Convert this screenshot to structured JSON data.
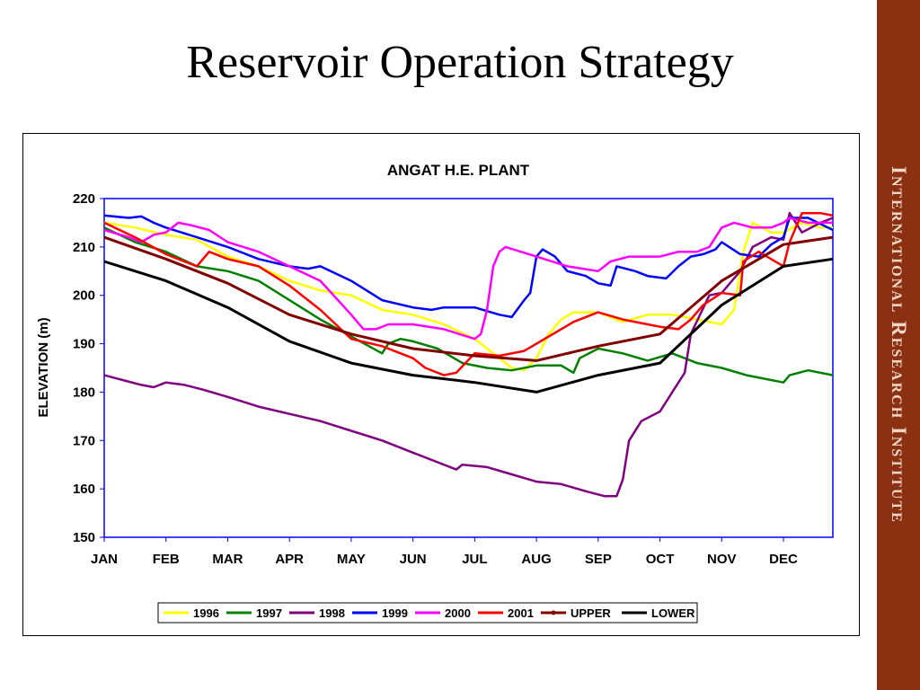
{
  "slide": {
    "title": "Reservoir Operation Strategy",
    "banner_text": "International Research Institute",
    "banner_color": "#8b3010"
  },
  "chart_data": {
    "type": "line",
    "title": "ANGAT H.E. PLANT",
    "xlabel": "",
    "ylabel": "ELEVATION (m)",
    "x_ticks": [
      "JAN",
      "FEB",
      "MAR",
      "APR",
      "MAY",
      "JUN",
      "JUL",
      "AUG",
      "SEP",
      "OCT",
      "NOV",
      "DEC"
    ],
    "y_ticks": [
      150,
      160,
      170,
      180,
      190,
      200,
      210,
      220
    ],
    "ylim": [
      150,
      220
    ],
    "xlim": [
      0,
      11.8
    ],
    "grid": false,
    "legend_position": "bottom",
    "series": [
      {
        "name": "1996",
        "color": "#ffff00",
        "points": [
          [
            0,
            215
          ],
          [
            0.5,
            214
          ],
          [
            1,
            212.5
          ],
          [
            1.5,
            211.5
          ],
          [
            2,
            208
          ],
          [
            2.5,
            206
          ],
          [
            3,
            203
          ],
          [
            3.5,
            201
          ],
          [
            4,
            200
          ],
          [
            4.5,
            197
          ],
          [
            5,
            196
          ],
          [
            5.5,
            194
          ],
          [
            6,
            191
          ],
          [
            6.3,
            188
          ],
          [
            6.6,
            185
          ],
          [
            6.8,
            184.5
          ],
          [
            7,
            187
          ],
          [
            7.2,
            192
          ],
          [
            7.4,
            195
          ],
          [
            7.6,
            196.5
          ],
          [
            8,
            196.5
          ],
          [
            8.4,
            194.5
          ],
          [
            8.8,
            196
          ],
          [
            9.2,
            196
          ],
          [
            9.6,
            195
          ],
          [
            10,
            194
          ],
          [
            10.2,
            197
          ],
          [
            10.35,
            209
          ],
          [
            10.5,
            215
          ],
          [
            10.8,
            213
          ],
          [
            11,
            213
          ],
          [
            11.3,
            215
          ],
          [
            11.6,
            214
          ],
          [
            11.8,
            214
          ]
        ]
      },
      {
        "name": "1997",
        "color": "#008000",
        "points": [
          [
            0,
            214
          ],
          [
            0.5,
            211
          ],
          [
            1,
            209
          ],
          [
            1.5,
            206
          ],
          [
            2,
            205
          ],
          [
            2.5,
            203
          ],
          [
            3,
            199
          ],
          [
            3.5,
            195
          ],
          [
            4,
            191.5
          ],
          [
            4.5,
            188
          ],
          [
            4.6,
            190
          ],
          [
            4.8,
            191
          ],
          [
            5,
            190.5
          ],
          [
            5.4,
            189
          ],
          [
            5.8,
            186
          ],
          [
            6.2,
            185
          ],
          [
            6.6,
            184.5
          ],
          [
            7,
            185.5
          ],
          [
            7.4,
            185.5
          ],
          [
            7.6,
            184
          ],
          [
            7.7,
            187
          ],
          [
            8,
            189
          ],
          [
            8.4,
            188
          ],
          [
            8.8,
            186.5
          ],
          [
            9.2,
            188
          ],
          [
            9.6,
            186
          ],
          [
            10,
            185
          ],
          [
            10.4,
            183.5
          ],
          [
            10.8,
            182.5
          ],
          [
            11,
            182
          ],
          [
            11.1,
            183.5
          ],
          [
            11.4,
            184.5
          ],
          [
            11.8,
            183.5
          ]
        ]
      },
      {
        "name": "1998",
        "color": "#800080",
        "points": [
          [
            0,
            183.5
          ],
          [
            0.3,
            182.5
          ],
          [
            0.6,
            181.5
          ],
          [
            0.8,
            181
          ],
          [
            1,
            182
          ],
          [
            1.3,
            181.5
          ],
          [
            1.6,
            180.5
          ],
          [
            2,
            179
          ],
          [
            2.5,
            177
          ],
          [
            3,
            175.5
          ],
          [
            3.5,
            174
          ],
          [
            4,
            172
          ],
          [
            4.5,
            170
          ],
          [
            5,
            167.5
          ],
          [
            5.4,
            165.5
          ],
          [
            5.7,
            164
          ],
          [
            5.8,
            165
          ],
          [
            6.2,
            164.5
          ],
          [
            6.6,
            163
          ],
          [
            7,
            161.5
          ],
          [
            7.4,
            161
          ],
          [
            7.8,
            159.5
          ],
          [
            8.1,
            158.5
          ],
          [
            8.3,
            158.5
          ],
          [
            8.4,
            162
          ],
          [
            8.5,
            170
          ],
          [
            8.7,
            174
          ],
          [
            9,
            176
          ],
          [
            9.2,
            180
          ],
          [
            9.4,
            184
          ],
          [
            9.5,
            192
          ],
          [
            9.8,
            200
          ],
          [
            10,
            200.5
          ],
          [
            10.3,
            205
          ],
          [
            10.5,
            210
          ],
          [
            10.8,
            212
          ],
          [
            11,
            211.5
          ],
          [
            11.1,
            217
          ],
          [
            11.3,
            213
          ],
          [
            11.6,
            215
          ],
          [
            11.8,
            216
          ]
        ]
      },
      {
        "name": "1999",
        "color": "#0000ff",
        "points": [
          [
            0,
            216.5
          ],
          [
            0.4,
            216
          ],
          [
            0.6,
            216.3
          ],
          [
            0.8,
            215
          ],
          [
            1,
            214
          ],
          [
            1.5,
            212
          ],
          [
            2,
            210
          ],
          [
            2.5,
            207.5
          ],
          [
            3,
            206
          ],
          [
            3.3,
            205.5
          ],
          [
            3.5,
            206
          ],
          [
            4,
            203
          ],
          [
            4.5,
            199
          ],
          [
            5,
            197.5
          ],
          [
            5.3,
            197
          ],
          [
            5.5,
            197.5
          ],
          [
            6,
            197.5
          ],
          [
            6.4,
            196
          ],
          [
            6.6,
            195.5
          ],
          [
            6.8,
            199
          ],
          [
            6.9,
            200.5
          ],
          [
            7,
            208
          ],
          [
            7.1,
            209.5
          ],
          [
            7.3,
            208
          ],
          [
            7.5,
            205
          ],
          [
            7.8,
            204
          ],
          [
            8,
            202.5
          ],
          [
            8.2,
            202
          ],
          [
            8.3,
            206
          ],
          [
            8.6,
            205
          ],
          [
            8.8,
            204
          ],
          [
            9.1,
            203.5
          ],
          [
            9.3,
            206
          ],
          [
            9.5,
            208
          ],
          [
            9.7,
            208.5
          ],
          [
            9.9,
            209.5
          ],
          [
            10,
            211
          ],
          [
            10.3,
            208.5
          ],
          [
            10.6,
            208
          ],
          [
            10.8,
            210.5
          ],
          [
            11,
            212
          ],
          [
            11.1,
            216
          ],
          [
            11.4,
            216
          ],
          [
            11.8,
            213.5
          ]
        ]
      },
      {
        "name": "2000",
        "color": "#ff00ff",
        "points": [
          [
            0,
            213.5
          ],
          [
            0.4,
            212
          ],
          [
            0.6,
            211
          ],
          [
            0.8,
            212.5
          ],
          [
            1,
            213
          ],
          [
            1.2,
            215
          ],
          [
            1.4,
            214.5
          ],
          [
            1.7,
            213.5
          ],
          [
            2,
            211
          ],
          [
            2.5,
            209
          ],
          [
            3,
            206
          ],
          [
            3.5,
            203
          ],
          [
            4,
            196
          ],
          [
            4.2,
            193
          ],
          [
            4.4,
            193
          ],
          [
            4.6,
            194
          ],
          [
            5,
            194
          ],
          [
            5.5,
            193
          ],
          [
            6,
            191
          ],
          [
            6.1,
            192
          ],
          [
            6.2,
            197
          ],
          [
            6.3,
            206
          ],
          [
            6.4,
            209
          ],
          [
            6.5,
            210
          ],
          [
            7,
            208
          ],
          [
            7.5,
            206
          ],
          [
            8,
            205
          ],
          [
            8.2,
            207
          ],
          [
            8.5,
            208
          ],
          [
            9,
            208
          ],
          [
            9.3,
            209
          ],
          [
            9.6,
            209
          ],
          [
            9.8,
            210
          ],
          [
            10,
            214
          ],
          [
            10.2,
            215
          ],
          [
            10.5,
            214
          ],
          [
            10.8,
            214
          ],
          [
            11,
            215
          ],
          [
            11.1,
            216
          ],
          [
            11.4,
            215
          ],
          [
            11.8,
            215
          ]
        ]
      },
      {
        "name": "2001",
        "color": "#ff0000",
        "points": [
          [
            0,
            215
          ],
          [
            0.5,
            212
          ],
          [
            1,
            208.5
          ],
          [
            1.5,
            206
          ],
          [
            1.7,
            209
          ],
          [
            2,
            207.5
          ],
          [
            2.5,
            206
          ],
          [
            3,
            202
          ],
          [
            3.5,
            197
          ],
          [
            4,
            191
          ],
          [
            4.5,
            189.5
          ],
          [
            5,
            187
          ],
          [
            5.2,
            185
          ],
          [
            5.5,
            183.5
          ],
          [
            5.7,
            184
          ],
          [
            6,
            188
          ],
          [
            6.4,
            187.5
          ],
          [
            6.8,
            188.5
          ],
          [
            7,
            190
          ],
          [
            7.2,
            191.5
          ],
          [
            7.4,
            193
          ],
          [
            7.6,
            194.5
          ],
          [
            8,
            196.5
          ],
          [
            8.4,
            195
          ],
          [
            8.8,
            194
          ],
          [
            9,
            193.5
          ],
          [
            9.3,
            193
          ],
          [
            9.5,
            195
          ],
          [
            9.7,
            198
          ],
          [
            10,
            200.5
          ],
          [
            10.3,
            200
          ],
          [
            10.35,
            207
          ],
          [
            10.6,
            209
          ],
          [
            11,
            206
          ],
          [
            11.1,
            211
          ],
          [
            11.3,
            217
          ],
          [
            11.6,
            217
          ],
          [
            11.8,
            216.5
          ]
        ]
      },
      {
        "name": "UPPER",
        "color": "#800000",
        "points": [
          [
            0,
            212
          ],
          [
            1,
            207.5
          ],
          [
            2,
            202.5
          ],
          [
            3,
            196
          ],
          [
            4,
            192
          ],
          [
            5,
            189
          ],
          [
            6,
            187.5
          ],
          [
            7,
            186.5
          ],
          [
            8,
            189.5
          ],
          [
            9,
            192
          ],
          [
            10,
            203
          ],
          [
            11,
            210.5
          ],
          [
            11.8,
            212
          ]
        ]
      },
      {
        "name": "LOWER",
        "color": "#000000",
        "points": [
          [
            0,
            207
          ],
          [
            1,
            203
          ],
          [
            2,
            197.5
          ],
          [
            3,
            190.5
          ],
          [
            4,
            186
          ],
          [
            5,
            183.5
          ],
          [
            6,
            182
          ],
          [
            7,
            180
          ],
          [
            8,
            183.5
          ],
          [
            9,
            186
          ],
          [
            10,
            198
          ],
          [
            11,
            206
          ],
          [
            11.8,
            207.5
          ]
        ]
      }
    ]
  }
}
